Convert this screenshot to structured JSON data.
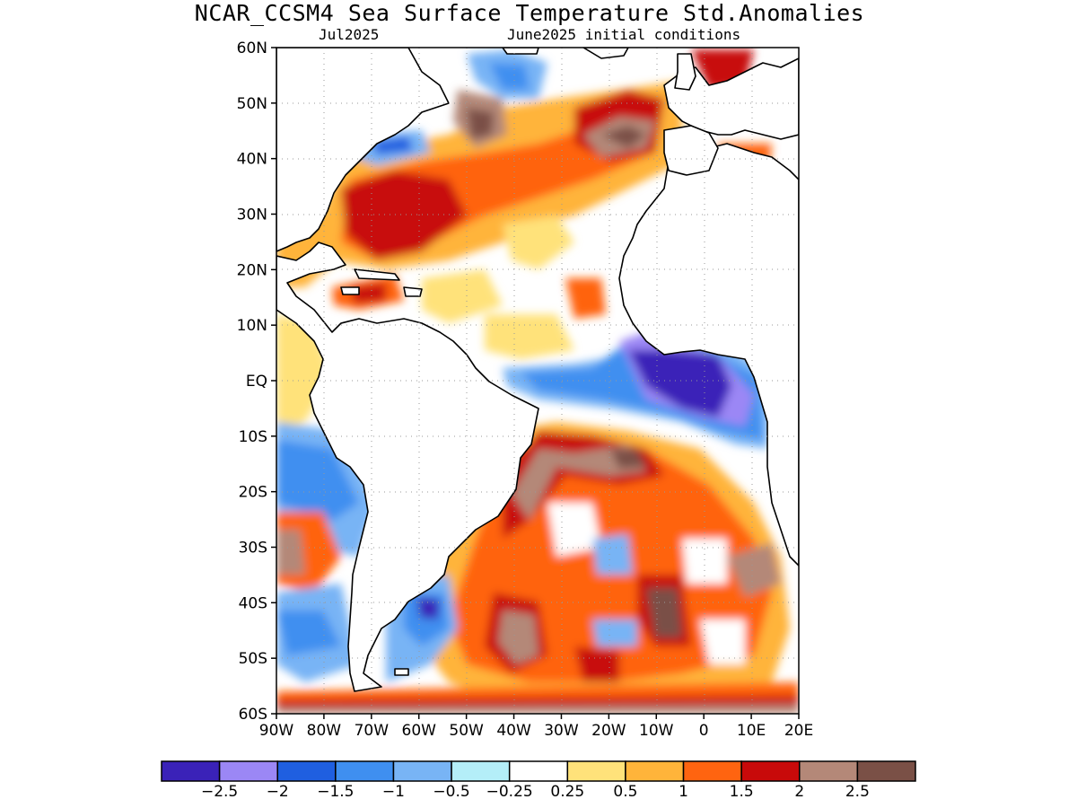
{
  "title": "NCAR_CCSM4 Sea Surface Temperature Std.Anomalies",
  "valid_month": "Jul2025",
  "init_label": "June2025 initial conditions",
  "map": {
    "lon_range": [
      -90,
      20
    ],
    "lat_range": [
      -60,
      60
    ],
    "lon_ticks": [
      "90W",
      "80W",
      "70W",
      "60W",
      "50W",
      "40W",
      "30W",
      "20W",
      "10W",
      "0",
      "10E",
      "20E"
    ],
    "lat_ticks": [
      "60N",
      "50N",
      "40N",
      "30N",
      "20N",
      "10N",
      "EQ",
      "10S",
      "20S",
      "30S",
      "40S",
      "50S",
      "60S"
    ],
    "grid": "dotted"
  },
  "colorbar": {
    "colors": [
      "#3a22b8",
      "#9b87f5",
      "#1f5fe0",
      "#3f8ff0",
      "#78b4f5",
      "#b4eef8",
      "#ffffff",
      "#ffe27a",
      "#ffb43a",
      "#ff6410",
      "#c80a0a",
      "#b48878",
      "#7a5046"
    ],
    "labels": [
      "−2.5",
      "−2",
      "−1.5",
      "−1",
      "−0.5",
      "−0.25",
      "0.25",
      "0.5",
      "1",
      "1.5",
      "2",
      "2.5"
    ]
  }
}
